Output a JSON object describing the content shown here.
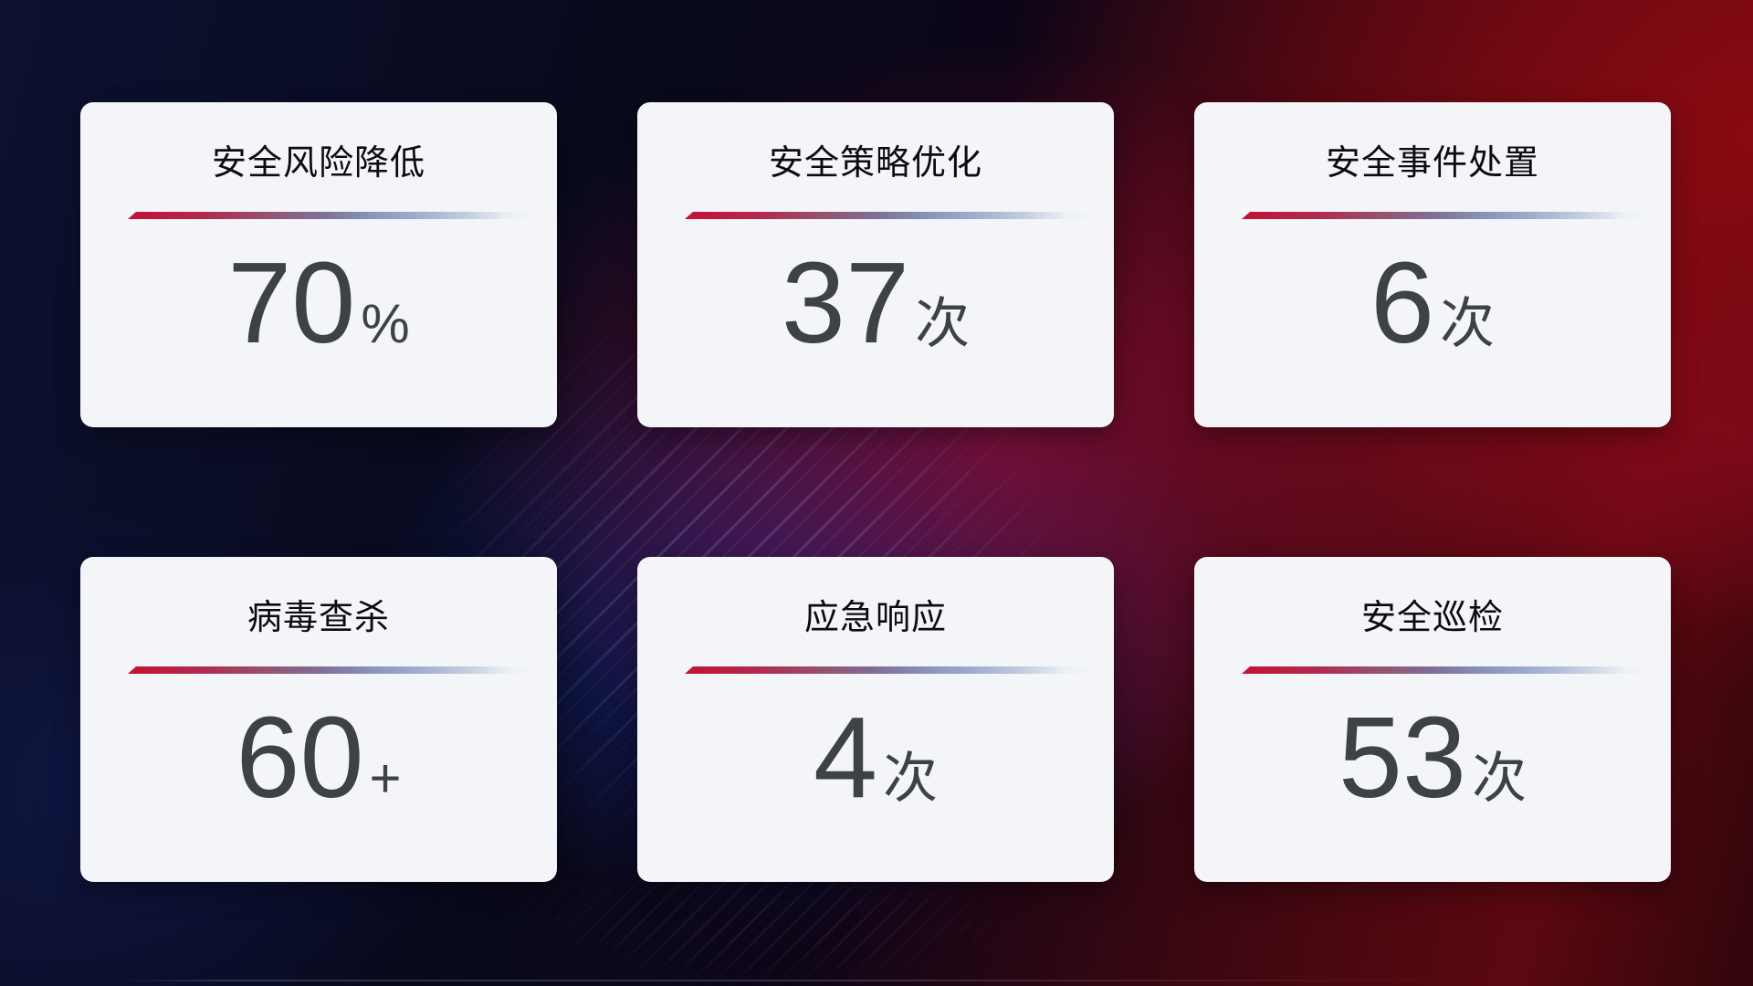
{
  "colors": {
    "card_bg": "#f4f5f8",
    "title_color": "#0c0c0e",
    "value_color": "#3e4145",
    "divider_red": "#c31236",
    "divider_blue": "#9fadd0",
    "bg_navy": "#0d1130",
    "bg_red": "#8c0a12",
    "bg_blue_glow": "#1c37be"
  },
  "cards": [
    {
      "title": "安全风险降低",
      "value": "70",
      "unit": "%"
    },
    {
      "title": "安全策略优化",
      "value": "37",
      "unit": "次"
    },
    {
      "title": "安全事件处置",
      "value": "6",
      "unit": "次"
    },
    {
      "title": "病毒查杀",
      "value": "60",
      "unit": "+"
    },
    {
      "title": "应急响应",
      "value": "4",
      "unit": "次"
    },
    {
      "title": "安全巡检",
      "value": "53",
      "unit": "次"
    }
  ]
}
